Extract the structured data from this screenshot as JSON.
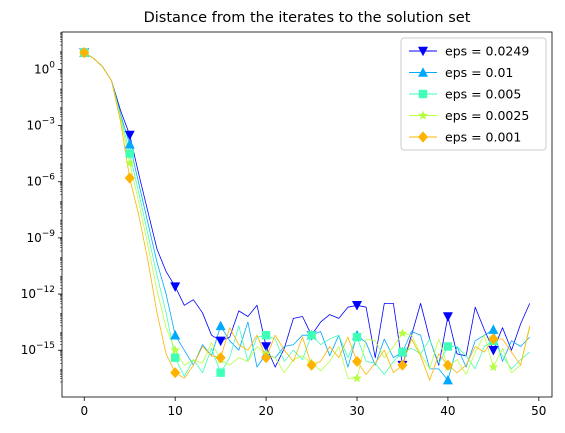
{
  "chart_data": {
    "type": "line",
    "title": "Distance from the iterates to the solution set",
    "xlabel": "",
    "ylabel": "",
    "x_scale": "linear",
    "y_scale": "log",
    "xlim": [
      -2.45,
      51.45
    ],
    "ylim_log10": [
      -17.5,
      2.0
    ],
    "x_ticks": [
      0,
      10,
      20,
      30,
      40,
      50
    ],
    "x_tick_labels": [
      "0",
      "10",
      "20",
      "30",
      "40",
      "50"
    ],
    "y_ticks_log10": [
      0,
      -3,
      -6,
      -9,
      -12,
      -15
    ],
    "grid": false,
    "legend_position": "top-right",
    "x": [
      0,
      1,
      2,
      3,
      4,
      5,
      6,
      7,
      8,
      9,
      10,
      11,
      12,
      13,
      14,
      15,
      16,
      17,
      18,
      19,
      20,
      21,
      22,
      23,
      24,
      25,
      26,
      27,
      28,
      29,
      30,
      31,
      32,
      33,
      34,
      35,
      36,
      37,
      38,
      39,
      40,
      41,
      42,
      43,
      44,
      45,
      46,
      47,
      48,
      49
    ],
    "series": [
      {
        "name": "eps = 0.0249",
        "color": "#0000ff",
        "marker": "triangle-down",
        "marker_every": 5,
        "log10_values": [
          0.9,
          0.6,
          0.15,
          -0.6,
          -2.2,
          -3.5,
          -5.6,
          -7.6,
          -9.6,
          -10.8,
          -11.6,
          -12.6,
          -12.3,
          -13.0,
          -14.2,
          -14.5,
          -14.3,
          -12.9,
          -13.2,
          -12.6,
          -14.8,
          -15.9,
          -14.9,
          -13.3,
          -13.2,
          -14.2,
          -13.5,
          -13.1,
          -13.3,
          -12.7,
          -12.6,
          -12.7,
          -15.4,
          -12.5,
          -12.5,
          -15.8,
          -14.2,
          -12.5,
          -14.4,
          -15.8,
          -13.2,
          -15.2,
          -15.3,
          -12.7,
          -13.9,
          -15.0,
          -13.8,
          -15.0,
          -13.6,
          -12.5
        ]
      },
      {
        "name": "eps = 0.01",
        "color": "#00a8ff",
        "marker": "triangle-up",
        "marker_every": 5,
        "log10_values": [
          0.9,
          0.6,
          0.15,
          -0.6,
          -2.4,
          -4.0,
          -6.1,
          -8.2,
          -10.3,
          -12.0,
          -14.2,
          -15.0,
          -15.8,
          -14.7,
          -15.3,
          -13.7,
          -14.5,
          -15.0,
          -13.5,
          -15.9,
          -15.2,
          -15.4,
          -14.8,
          -14.7,
          -14.2,
          -14.2,
          -14.0,
          -15.3,
          -14.2,
          -15.9,
          -14.2,
          -14.6,
          -15.8,
          -14.4,
          -15.4,
          -15.1,
          -14.0,
          -14.2,
          -16.0,
          -16.0,
          -16.6,
          -14.8,
          -15.9,
          -14.5,
          -14.2,
          -13.9,
          -15.6,
          -14.5,
          -14.8,
          -14.3
        ]
      },
      {
        "name": "eps = 0.005",
        "color": "#40ffb6",
        "marker": "square",
        "marker_every": 5,
        "log10_values": [
          0.9,
          0.6,
          0.15,
          -0.6,
          -2.5,
          -4.5,
          -6.6,
          -8.8,
          -11.0,
          -13.0,
          -15.4,
          -16.4,
          -15.5,
          -16.2,
          -14.9,
          -16.2,
          -15.4,
          -13.7,
          -15.6,
          -14.3,
          -14.2,
          -14.4,
          -15.6,
          -15.0,
          -15.5,
          -14.2,
          -14.7,
          -14.4,
          -14.2,
          -15.4,
          -14.3,
          -15.6,
          -15.7,
          -16.3,
          -15.6,
          -15.1,
          -14.9,
          -15.2,
          -14.4,
          -15.7,
          -14.8,
          -14.8,
          -15.3,
          -16.0,
          -14.8,
          -14.5,
          -15.3,
          -16.0,
          -15.5,
          -15.1
        ]
      },
      {
        "name": "eps = 0.0025",
        "color": "#b6ff40",
        "marker": "star",
        "marker_every": 5,
        "log10_values": [
          0.9,
          0.6,
          0.15,
          -0.6,
          -2.6,
          -5.0,
          -7.1,
          -9.4,
          -11.8,
          -13.8,
          -15.0,
          -15.8,
          -15.5,
          -15.7,
          -14.6,
          -15.5,
          -15.8,
          -15.4,
          -15.6,
          -14.8,
          -15.2,
          -15.4,
          -16.2,
          -15.5,
          -15.3,
          -15.7,
          -16.1,
          -15.6,
          -14.8,
          -16.5,
          -16.5,
          -14.4,
          -14.5,
          -15.4,
          -14.8,
          -14.1,
          -14.2,
          -15.2,
          -16.0,
          -14.4,
          -15.9,
          -15.5,
          -16.3,
          -15.1,
          -14.2,
          -15.9,
          -14.9,
          -16.2,
          -15.8,
          -13.8
        ]
      },
      {
        "name": "eps = 0.001",
        "color": "#ffb300",
        "marker": "diamond",
        "marker_every": 5,
        "log10_values": [
          0.9,
          0.6,
          0.15,
          -0.6,
          -2.8,
          -5.8,
          -7.8,
          -10.2,
          -13.0,
          -15.2,
          -16.2,
          -16.5,
          -15.8,
          -14.8,
          -15.3,
          -15.4,
          -13.8,
          -14.7,
          -15.0,
          -14.2,
          -15.4,
          -14.2,
          -15.0,
          -15.6,
          -14.3,
          -15.8,
          -15.6,
          -14.8,
          -15.4,
          -14.3,
          -15.6,
          -16.3,
          -15.7,
          -15.0,
          -16.2,
          -15.8,
          -14.4,
          -15.3,
          -16.6,
          -15.2,
          -15.8,
          -16.2,
          -15.8,
          -14.8,
          -15.1,
          -14.4,
          -14.4,
          -15.1,
          -15.8,
          -13.7
        ]
      }
    ]
  }
}
